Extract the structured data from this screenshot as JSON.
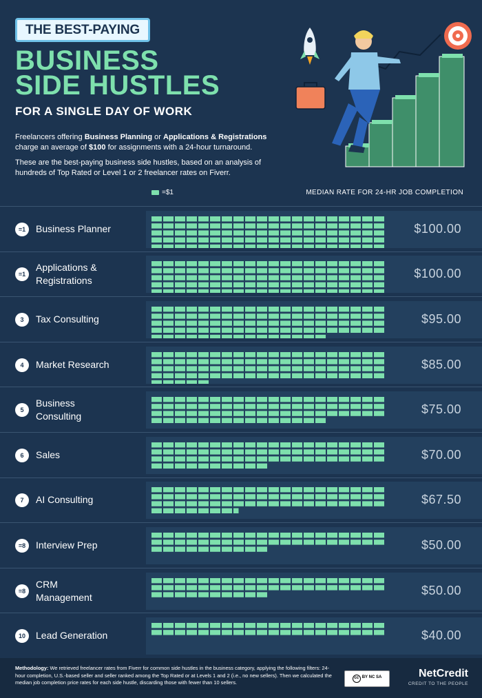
{
  "header": {
    "badge": "THE BEST-PAYING",
    "title_line1": "BUSINESS",
    "title_line2": "SIDE HUSTLES",
    "subtitle": "FOR A SINGLE DAY OF WORK",
    "intro1_a": "Freelancers offering ",
    "intro1_b": "Business Planning",
    "intro1_c": " or ",
    "intro1_d": "Applications & Registrations",
    "intro1_e": " charge an average of ",
    "intro1_f": "$100",
    "intro1_g": " for assignments with a 24-hour turnaround.",
    "intro2": "These are the best-paying business side hustles, based on an analysis of hundreds of Top Rated or Level 1 or 2 freelancer rates on Fiverr.",
    "legend_label": "=$1",
    "column_header": "MEDIAN RATE FOR 24-HR JOB COMPLETION"
  },
  "colors": {
    "background": "#1c3450",
    "accent": "#7ee0ad",
    "panel": "#23405e"
  },
  "chart_data": {
    "type": "bar",
    "unit": "=$1",
    "categories": [
      "Business Planner",
      "Applications & Registrations",
      "Tax Consulting",
      "Market Research",
      "Business Consulting",
      "Sales",
      "AI Consulting",
      "Interview Prep",
      "CRM Management",
      "Lead Generation"
    ],
    "ranks": [
      "=1",
      "=1",
      "3",
      "4",
      "5",
      "6",
      "7",
      "=8",
      "=8",
      "10"
    ],
    "values": [
      100.0,
      100.0,
      95.0,
      85.0,
      75.0,
      70.0,
      67.5,
      50.0,
      50.0,
      40.0
    ],
    "labels": [
      "$100.00",
      "$100.00",
      "$95.00",
      "$85.00",
      "$75.00",
      "$70.00",
      "$67.50",
      "$50.00",
      "$50.00",
      "$40.00"
    ]
  },
  "rows": [
    {
      "rank": "=1",
      "name_l1": "Business Planner",
      "name_l2": "",
      "value": "$100.00"
    },
    {
      "rank": "=1",
      "name_l1": "Applications &",
      "name_l2": "Registrations",
      "value": "$100.00"
    },
    {
      "rank": "3",
      "name_l1": "Tax Consulting",
      "name_l2": "",
      "value": "$95.00"
    },
    {
      "rank": "4",
      "name_l1": "Market Research",
      "name_l2": "",
      "value": "$85.00"
    },
    {
      "rank": "5",
      "name_l1": "Business",
      "name_l2": "Consulting",
      "value": "$75.00"
    },
    {
      "rank": "6",
      "name_l1": "Sales",
      "name_l2": "",
      "value": "$70.00"
    },
    {
      "rank": "7",
      "name_l1": "AI Consulting",
      "name_l2": "",
      "value": "$67.50"
    },
    {
      "rank": "=8",
      "name_l1": "Interview Prep",
      "name_l2": "",
      "value": "$50.00"
    },
    {
      "rank": "=8",
      "name_l1": "CRM",
      "name_l2": "Management",
      "value": "$50.00"
    },
    {
      "rank": "10",
      "name_l1": "Lead Generation",
      "name_l2": "",
      "value": "$40.00"
    }
  ],
  "footer": {
    "method_label": "Methodology:",
    "method_text": " We retrieved freelancer rates from Fiverr for common side hustles in the business category, applying the following filters: 24-hour completion, U.S.-based seller and seller ranked among the Top Rated or at Levels 1 and 2 (i.e., no new sellers). Then we calculated the median job completion price rates for each side hustle, discarding those with fewer than 10 sellers.",
    "license": "BY NC SA",
    "brand_name": "NetCredit",
    "brand_tagline": "CREDIT TO THE PEOPLE"
  }
}
